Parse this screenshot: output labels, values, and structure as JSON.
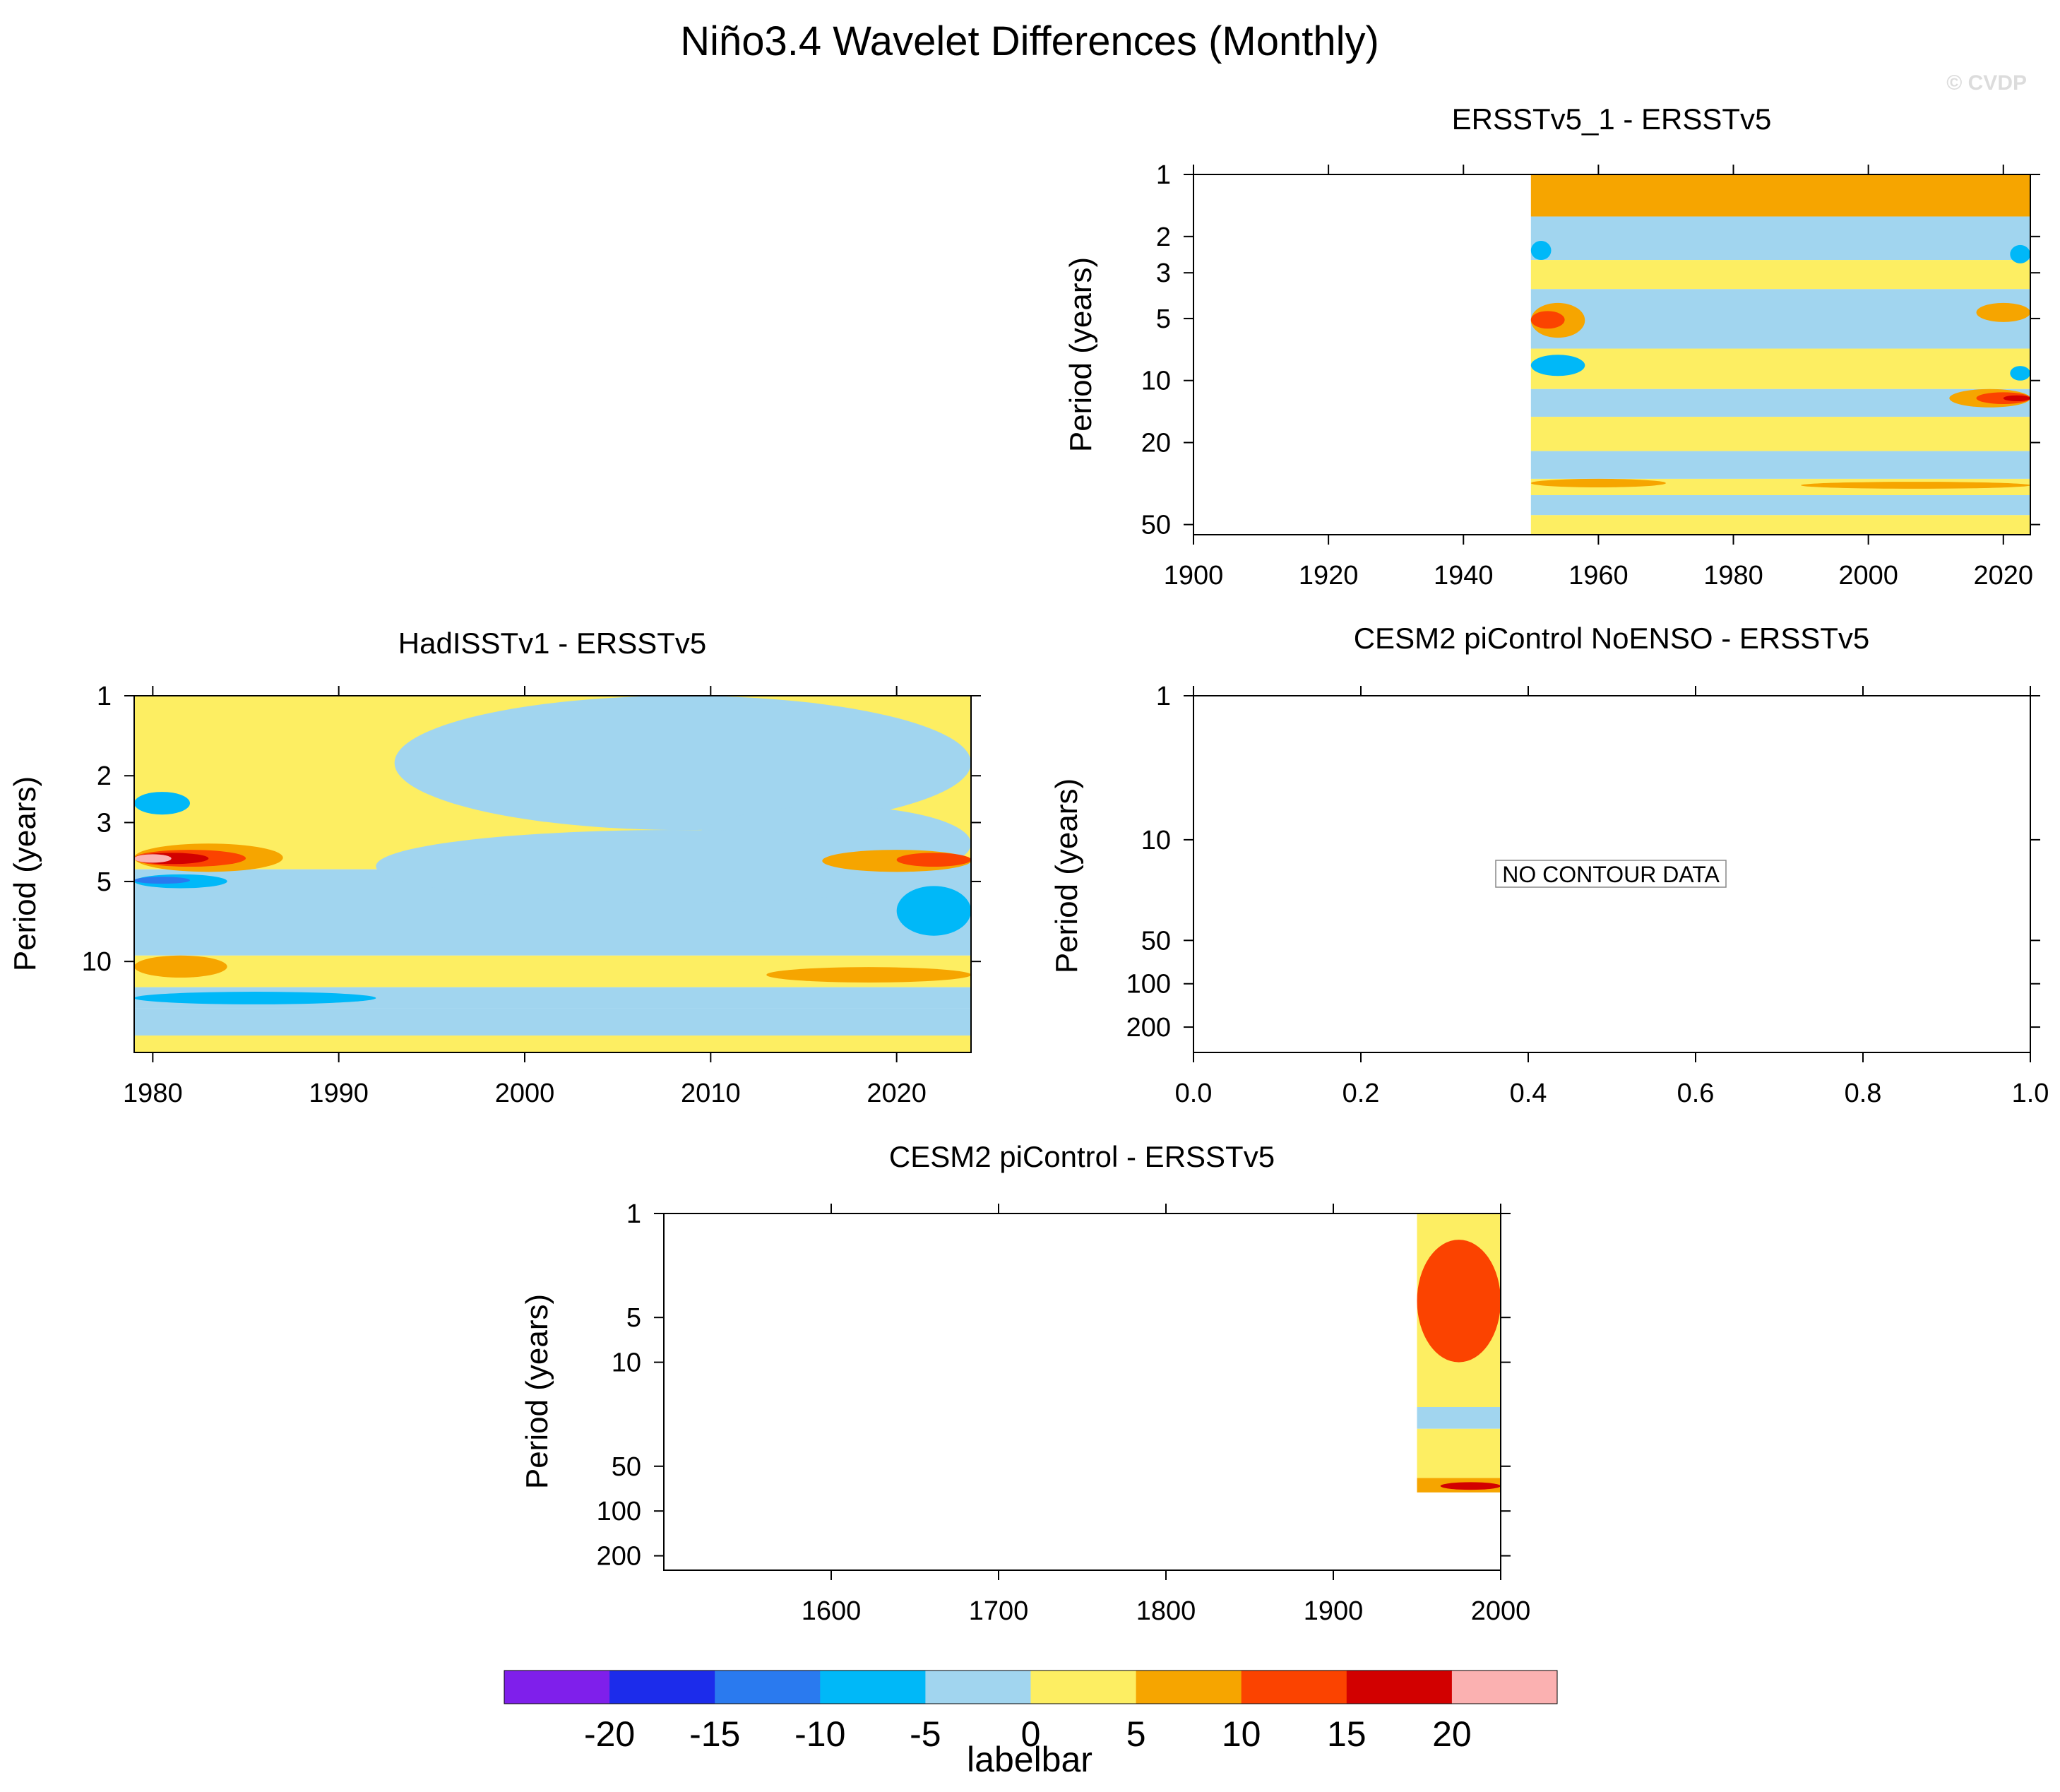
{
  "figure": {
    "title": "Niño3.4 Wavelet Differences (Monthly)",
    "watermark": "© CVDP"
  },
  "palette": {
    "levels": [
      -20,
      -15,
      -10,
      -5,
      0,
      5,
      10,
      15,
      20
    ],
    "colors": [
      "#7f1feb",
      "#1c2ceb",
      "#2a7aef",
      "#00b8f8",
      "#a1d5ef",
      "#fdee62",
      "#f6a500",
      "#fb4300",
      "#d20000",
      "#fbb1b1"
    ],
    "title": "labelbar"
  },
  "chart_data": [
    {
      "id": "ersst-1",
      "type": "heatmap",
      "title": "ERSSTv5_1 - ERSSTv5",
      "xlabel": "",
      "ylabel": "Period (years)",
      "xlim": [
        1900,
        2024
      ],
      "x_ticks": [
        1900,
        1920,
        1940,
        1960,
        1980,
        2000,
        2020
      ],
      "y_scale": "log",
      "ylim": [
        1,
        56
      ],
      "y_ticks": [
        1,
        2,
        3,
        5,
        10,
        20,
        50
      ],
      "data_x_range": [
        1950,
        2024
      ],
      "bands": [
        {
          "y": [
            1,
            1.6
          ],
          "v": 5
        },
        {
          "y": [
            1.6,
            2.6
          ],
          "v": -3
        },
        {
          "y": [
            2.6,
            3.6
          ],
          "v": 3
        },
        {
          "y": [
            3.6,
            7
          ],
          "v": -3
        },
        {
          "y": [
            7,
            11
          ],
          "v": 2
        },
        {
          "y": [
            11,
            15
          ],
          "v": -2
        },
        {
          "y": [
            15,
            22
          ],
          "v": 3
        },
        {
          "y": [
            22,
            30
          ],
          "v": -3
        },
        {
          "y": [
            30,
            36
          ],
          "v": 3
        },
        {
          "y": [
            36,
            45
          ],
          "v": -3
        },
        {
          "y": [
            45,
            56
          ],
          "v": 3
        }
      ],
      "blobs": [
        {
          "x": [
            1950,
            1958
          ],
          "y": [
            4.2,
            6.2
          ],
          "v": 7
        },
        {
          "x": [
            1950,
            1955
          ],
          "y": [
            4.6,
            5.6
          ],
          "v": 12
        },
        {
          "x": [
            1950,
            1958
          ],
          "y": [
            7.5,
            9.5
          ],
          "v": -7
        },
        {
          "x": [
            1950,
            1953
          ],
          "y": [
            2.1,
            2.6
          ],
          "v": -7
        },
        {
          "x": [
            2012,
            2024
          ],
          "y": [
            11,
            13.5
          ],
          "v": 8
        },
        {
          "x": [
            2016,
            2024
          ],
          "y": [
            11.4,
            13
          ],
          "v": 13
        },
        {
          "x": [
            2020,
            2024
          ],
          "y": [
            11.8,
            12.6
          ],
          "v": 18
        },
        {
          "x": [
            2016,
            2024
          ],
          "y": [
            4.2,
            5.2
          ],
          "v": 8
        },
        {
          "x": [
            2021,
            2024
          ],
          "y": [
            2.2,
            2.7
          ],
          "v": -7
        },
        {
          "x": [
            2021,
            2024
          ],
          "y": [
            8.5,
            10
          ],
          "v": -7
        },
        {
          "x": [
            1950,
            1970
          ],
          "y": [
            30,
            33
          ],
          "v": 7
        },
        {
          "x": [
            1990,
            2024
          ],
          "y": [
            31,
            33.5
          ],
          "v": 7
        }
      ]
    },
    {
      "id": "hadisst",
      "type": "heatmap",
      "title": "HadISSTv1 - ERSSTv5",
      "xlabel": "",
      "ylabel": "Period (years)",
      "xlim": [
        1979,
        2024
      ],
      "x_ticks": [
        1980,
        1990,
        2000,
        2010,
        2020
      ],
      "y_scale": "log",
      "ylim": [
        1,
        22
      ],
      "y_ticks": [
        1,
        2,
        3,
        5,
        10
      ],
      "data_x_range": [
        1979,
        2024
      ],
      "bands": [
        {
          "y": [
            1,
            4.5
          ],
          "v": 3
        },
        {
          "y": [
            4.5,
            9.5
          ],
          "v": -3
        },
        {
          "y": [
            9.5,
            12.5
          ],
          "v": 3
        },
        {
          "y": [
            12.5,
            15
          ],
          "v": -3
        },
        {
          "y": [
            15,
            19
          ],
          "v": -3
        },
        {
          "y": [
            19,
            22
          ],
          "v": 3
        }
      ],
      "blobs": [
        {
          "x": [
            1993,
            2024
          ],
          "y": [
            1,
            3.2
          ],
          "v": -3
        },
        {
          "x": [
            2009,
            2024
          ],
          "y": [
            2.6,
            5
          ],
          "v": -3
        },
        {
          "x": [
            1992,
            2024
          ],
          "y": [
            3.2,
            6
          ],
          "v": -3
        },
        {
          "x": [
            1979,
            1987
          ],
          "y": [
            3.6,
            4.6
          ],
          "v": 7
        },
        {
          "x": [
            1979,
            1985
          ],
          "y": [
            3.8,
            4.4
          ],
          "v": 12
        },
        {
          "x": [
            1979,
            1983
          ],
          "y": [
            3.9,
            4.3
          ],
          "v": 17
        },
        {
          "x": [
            1979,
            1981
          ],
          "y": [
            3.95,
            4.25
          ],
          "v": 22
        },
        {
          "x": [
            1979,
            1984
          ],
          "y": [
            4.7,
            5.3
          ],
          "v": -7
        },
        {
          "x": [
            1979,
            1982
          ],
          "y": [
            4.8,
            5.1
          ],
          "v": -12
        },
        {
          "x": [
            1979,
            1982
          ],
          "y": [
            2.3,
            2.8
          ],
          "v": -7
        },
        {
          "x": [
            2016,
            2024
          ],
          "y": [
            3.8,
            4.6
          ],
          "v": 7
        },
        {
          "x": [
            2020,
            2024
          ],
          "y": [
            3.9,
            4.4
          ],
          "v": 12
        },
        {
          "x": [
            2020,
            2024
          ],
          "y": [
            5.2,
            8
          ],
          "v": -7
        },
        {
          "x": [
            1979,
            1984
          ],
          "y": [
            9.5,
            11.5
          ],
          "v": 7
        },
        {
          "x": [
            2013,
            2024
          ],
          "y": [
            10.5,
            12
          ],
          "v": 7
        },
        {
          "x": [
            1979,
            1992
          ],
          "y": [
            13,
            14.5
          ],
          "v": -7
        }
      ]
    },
    {
      "id": "noenso",
      "type": "heatmap",
      "title": "CESM2 piControl NoENSO - ERSSTv5",
      "xlabel": "",
      "ylabel": "Period (years)",
      "xlim": [
        0,
        1
      ],
      "x_ticks": [
        0.0,
        0.2,
        0.4,
        0.6,
        0.8,
        1.0
      ],
      "x_tick_labels": [
        "0.0",
        "0.2",
        "0.4",
        "0.6",
        "0.8",
        "1.0"
      ],
      "y_scale": "log",
      "ylim": [
        1,
        300
      ],
      "y_ticks": [
        1,
        10,
        50,
        100,
        200
      ],
      "data_x_range": null,
      "message": "NO CONTOUR DATA"
    },
    {
      "id": "cesm2",
      "type": "heatmap",
      "title": "CESM2 piControl - ERSSTv5",
      "xlabel": "",
      "ylabel": "Period (years)",
      "xlim": [
        1500,
        2000
      ],
      "x_ticks": [
        1600,
        1700,
        1800,
        1900,
        2000
      ],
      "y_scale": "log",
      "ylim": [
        1,
        250
      ],
      "y_ticks": [
        1,
        5,
        10,
        50,
        100,
        200
      ],
      "data_x_range": [
        1950,
        2000
      ],
      "data_y_range": [
        1,
        75
      ],
      "bands": [
        {
          "y": [
            1,
            20
          ],
          "v": 3
        },
        {
          "y": [
            20,
            28
          ],
          "v": -3
        },
        {
          "y": [
            28,
            60
          ],
          "v": 3
        },
        {
          "y": [
            60,
            75
          ],
          "v": 7
        }
      ],
      "blobs": [
        {
          "x": [
            1964,
            2000
          ],
          "y": [
            64,
            72
          ],
          "v": 17
        },
        {
          "x": [
            1950,
            2000
          ],
          "y": [
            1.5,
            10
          ],
          "v": 12
        }
      ]
    }
  ]
}
